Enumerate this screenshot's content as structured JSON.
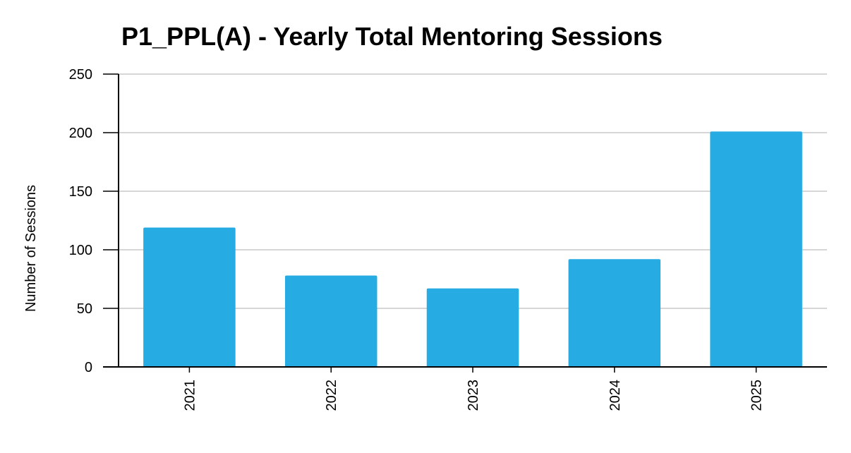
{
  "chart_data": {
    "type": "bar",
    "title": "P1_PPL(A) - Yearly Total Mentoring Sessions",
    "xlabel": "",
    "ylabel": "Number of Sessions",
    "categories": [
      "2021",
      "2022",
      "2023",
      "2024",
      "2025"
    ],
    "values": [
      119,
      78,
      67,
      92,
      201
    ],
    "ylim": [
      0,
      250
    ],
    "yticks": [
      0,
      50,
      100,
      150,
      200,
      250
    ],
    "grid": true,
    "bar_color": "#26abe2",
    "legend": "none"
  }
}
